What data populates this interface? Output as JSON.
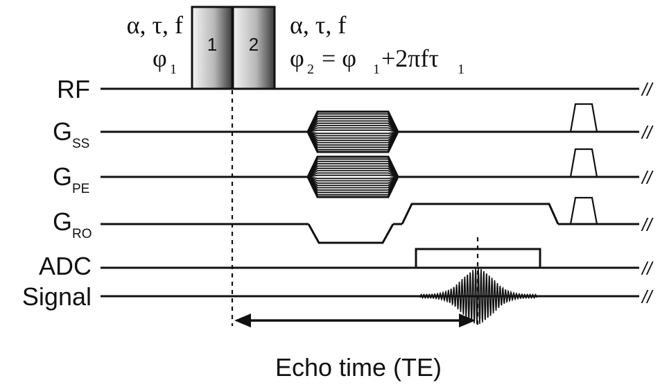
{
  "rows": [
    {
      "label": "RF",
      "sub": ""
    },
    {
      "label": "G",
      "sub": "SS"
    },
    {
      "label": "G",
      "sub": "PE"
    },
    {
      "label": "G",
      "sub": "RO"
    },
    {
      "label": "ADC",
      "sub": ""
    },
    {
      "label": "Signal",
      "sub": ""
    }
  ],
  "pulses": {
    "p1": {
      "label": "1",
      "params": "α, τ, f",
      "phase": "φ",
      "phase_sub": "1"
    },
    "p2": {
      "label": "2",
      "params": "α, τ, f",
      "phase": "φ",
      "phase_sub": "2",
      "eq_mid": " = φ",
      "eq_mid_sub": "1",
      "eq_tail": "+2πfτ",
      "eq_tail_sub": "1"
    }
  },
  "echo_time_label": "Echo time (TE)",
  "break_mark": "//"
}
